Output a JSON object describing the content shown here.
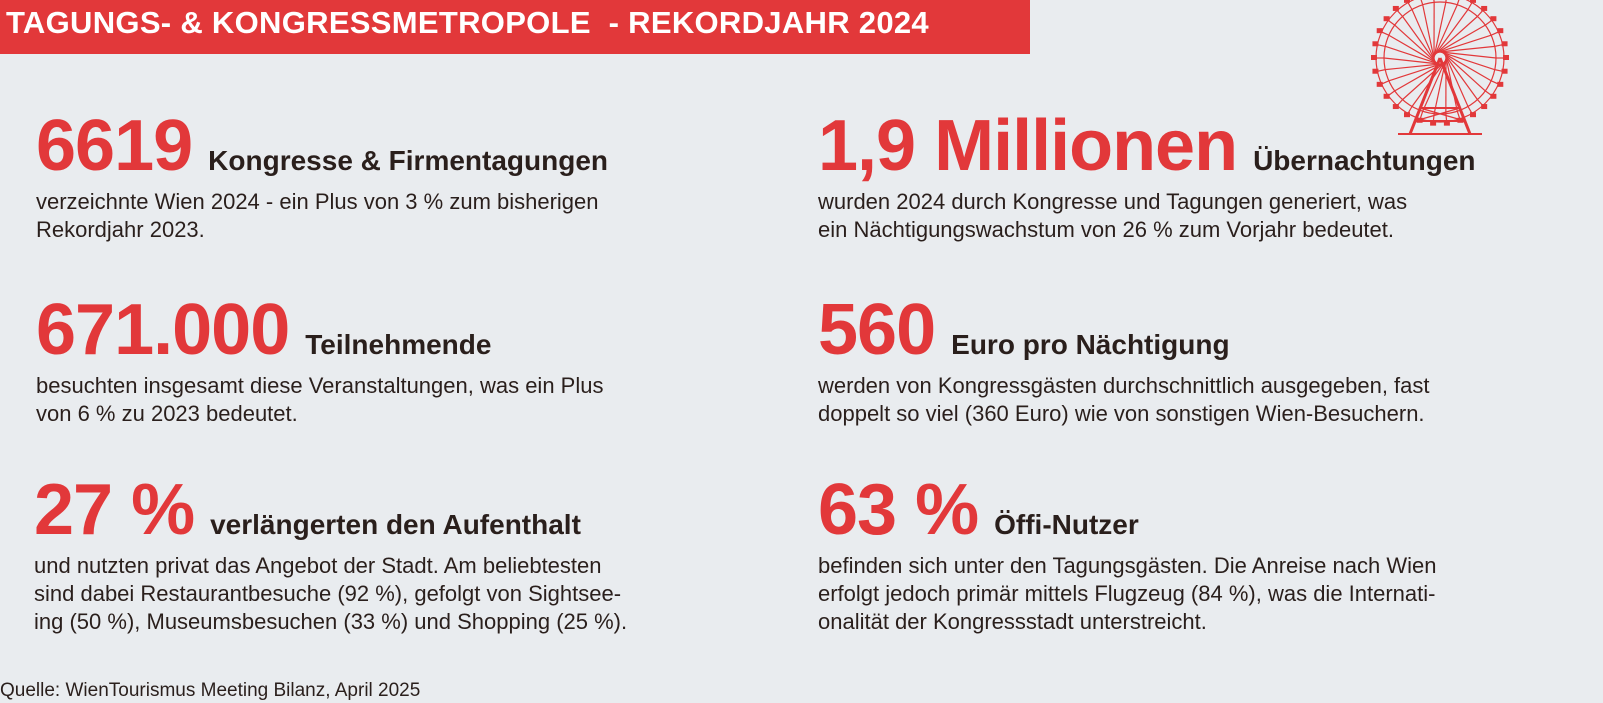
{
  "header": {
    "title": "TAGUNGS- & KONGRESSMETROPOLE  - REKORDJAHR 2024"
  },
  "colors": {
    "accent": "#e2383a",
    "text": "#2a1f1c",
    "background": "#e9ecef"
  },
  "icon": "ferris-wheel-icon",
  "stats": [
    {
      "value": "6619",
      "label": "Kongresse & Firmentagungen",
      "lines": [
        "verzeichnte Wien 2024 - ein Plus von 3 % zum bisherigen",
        "Rekordjahr 2023."
      ]
    },
    {
      "value": "1,9 Millionen",
      "label": "Übernachtungen",
      "lines": [
        "wurden 2024 durch Kongresse und Tagungen generiert, was",
        "ein Nächtigungswachstum von 26 % zum Vorjahr bedeutet."
      ]
    },
    {
      "value": "671.000",
      "label": "Teilnehmende",
      "lines": [
        "besuchten insgesamt diese Veranstaltungen, was ein Plus",
        "von 6 % zu 2023 bedeutet."
      ]
    },
    {
      "value": "560",
      "label": "Euro pro Nächtigung",
      "lines": [
        "werden von Kongressgästen durchschnittlich ausgegeben, fast",
        "doppelt so viel (360 Euro) wie von sonstigen Wien-Besuchern."
      ]
    },
    {
      "value": "27 %",
      "label": "verlängerten den Aufenthalt",
      "lines": [
        "und nutzten privat das Angebot der Stadt. Am beliebtesten",
        "sind dabei Restaurantbesuche (92 %), gefolgt von Sightsee-",
        "ing (50 %), Museumsbesuchen (33 %) und Shopping (25 %)."
      ]
    },
    {
      "value": "63 %",
      "label": "Öffi-Nutzer",
      "lines": [
        "befinden sich unter den Tagungsgästen. Die Anreise nach Wien",
        "erfolgt jedoch primär mittels Flugzeug (84 %), was die Internati-",
        "onalität der Kongressstadt unterstreicht."
      ]
    }
  ],
  "source": "Quelle: WienTourismus Meeting Bilanz, April 2025"
}
